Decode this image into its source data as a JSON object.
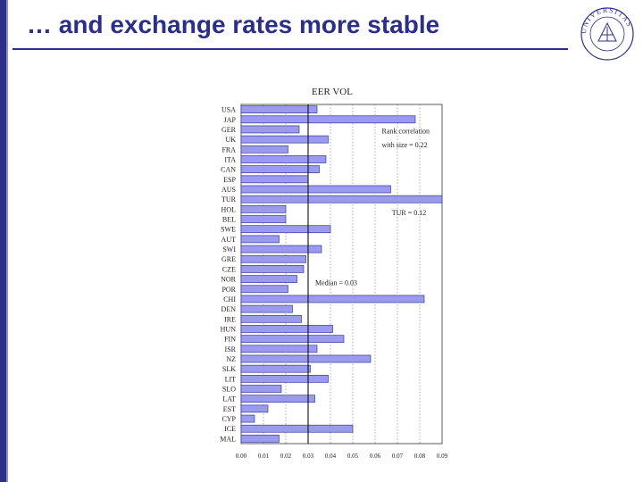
{
  "slide": {
    "title": "… and exchange rates more stable",
    "colors": {
      "title": "#2b2f8a",
      "bar": "#9a9aee",
      "bar_stroke": "#3a3aa0"
    },
    "logo": {
      "text": "UNIVERSITAS",
      "icon": "university-seal-icon"
    }
  },
  "chart_data": {
    "type": "bar",
    "orientation": "horizontal",
    "title": "EER VOL",
    "categories": [
      "USA",
      "JAP",
      "GER",
      "UK",
      "FRA",
      "ITA",
      "CAN",
      "ESP",
      "AUS",
      "TUR",
      "HOL",
      "BEL",
      "SWE",
      "AUT",
      "SWI",
      "GRE",
      "CZE",
      "NOR",
      "POR",
      "CHI",
      "DEN",
      "IRE",
      "HUN",
      "FIN",
      "ISR",
      "NZ",
      "SLK",
      "LIT",
      "SLO",
      "LAT",
      "EST",
      "CYP",
      "ICE",
      "MAL"
    ],
    "values": [
      0.034,
      0.078,
      0.026,
      0.039,
      0.021,
      0.038,
      0.035,
      0.03,
      0.067,
      0.092,
      0.02,
      0.02,
      0.04,
      0.017,
      0.036,
      0.029,
      0.028,
      0.025,
      0.021,
      0.082,
      0.023,
      0.027,
      0.041,
      0.046,
      0.034,
      0.058,
      0.031,
      0.039,
      0.018,
      0.033,
      0.012,
      0.006,
      0.05,
      0.017
    ],
    "xlim": [
      0,
      0.09
    ],
    "xticks": [
      "0.00",
      "0.01",
      "0.02",
      "0.03",
      "0.04",
      "0.05",
      "0.06",
      "0.07",
      "0.08",
      "0.09"
    ],
    "grid": "dotted vertical",
    "median": {
      "value": 0.03,
      "label": "Median = 0.03"
    },
    "annotations": [
      {
        "text": "Rank correlation",
        "near": "GER"
      },
      {
        "text": "with size = 0.22",
        "near": "FRA"
      },
      {
        "text": "TUR = 0.12",
        "near": "BEL"
      }
    ]
  }
}
